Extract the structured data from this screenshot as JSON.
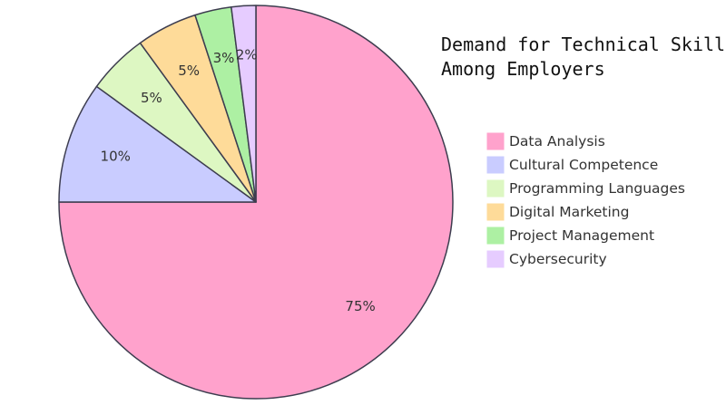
{
  "chart_data": {
    "type": "pie",
    "title": "Demand for Technical Skills Among Employers",
    "title_lines": [
      "Demand for Technical Skills",
      "Among Employers"
    ],
    "legend_position": "right",
    "slices": [
      {
        "label": "Data Analysis",
        "value": 75,
        "display": "75%",
        "color": "#ffa2cc"
      },
      {
        "label": "Cultural Competence",
        "value": 10,
        "display": "10%",
        "color": "#c9ccff"
      },
      {
        "label": "Programming Languages",
        "value": 5,
        "display": "5%",
        "color": "#ddf7c2"
      },
      {
        "label": "Digital Marketing",
        "value": 5,
        "display": "5%",
        "color": "#fedb99"
      },
      {
        "label": "Project Management",
        "value": 3,
        "display": "3%",
        "color": "#adf0a3"
      },
      {
        "label": "Cybersecurity",
        "value": 2,
        "display": "2%",
        "color": "#e6ccff"
      }
    ],
    "border_color": "#3d3d4f"
  }
}
